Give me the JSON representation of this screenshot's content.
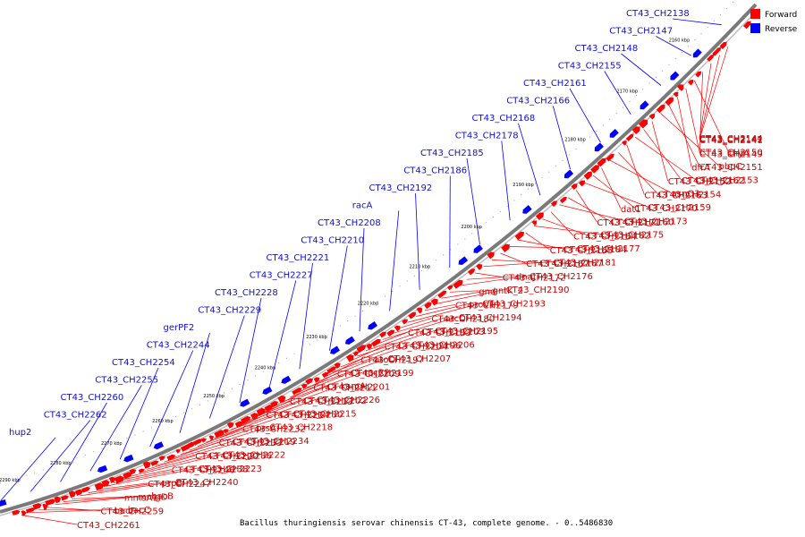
{
  "colors": {
    "forward": "#ff0000",
    "reverse": "#0000ff",
    "forward_label": "#cc0000",
    "reverse_label": "#1010cc",
    "backbone": "#808080"
  },
  "legend": {
    "forward": "Forward",
    "reverse": "Reverse"
  },
  "caption": "Bacillus thuringiensis serovar chinensis CT-43, complete genome. - 0..5486830",
  "ticks": [
    "2160 kbp",
    "2170 kbp",
    "2180 kbp",
    "2190 kbp",
    "2200 kbp",
    "2210 kbp",
    "2220 kbp",
    "2230 kbp",
    "2240 kbp",
    "2250 kbp",
    "2260 kbp",
    "2270 kbp",
    "2280 kbp",
    "2290 kbp"
  ],
  "reverse_labels": [
    "CT43_CH2138",
    "CT43_CH2147",
    "CT43_CH2148",
    "CT43_CH2155",
    "CT43_CH2161",
    "CT43_CH2166",
    "CT43_CH2168",
    "CT43_CH2178",
    "CT43_CH2185",
    "CT43_CH2186",
    "CT43_CH2192",
    "racA",
    "CT43_CH2208",
    "CT43_CH2210",
    "CT43_CH2221",
    "CT43_CH2227",
    "CT43_CH2228",
    "CT43_CH2229",
    "gerPF2",
    "CT43_CH2244",
    "CT43_CH2254",
    "CT43_CH2255",
    "CT43_CH2260",
    "CT43_CH2262",
    "hup2"
  ],
  "forward_labels": [
    "CT43_CH2141",
    "CT43_CH2142",
    "CT43_CH2144",
    "CT43_CH2149",
    "thyA",
    "CT43_CH2150",
    "dfrA",
    "CT43_CH2151",
    "pbpC",
    "CT43_CH2152",
    "CT43_CH2162",
    "CT43_CH2153",
    "CT43_CH2163",
    "CT43_CH2154",
    "asnO3",
    "dat1",
    "CT43_CH2170",
    "CT43_CH2159",
    "CT43_CH2171",
    "CT43_CH2160",
    "CT43_CH2173",
    "CT43_CH2164",
    "CT43_CH2182",
    "CT43_CH2175",
    "CT43_CH2165",
    "CT43_CH2184",
    "CT43_CH2177",
    "CT43_CH2167",
    "CT43_CH2187",
    "CT43_CH2181",
    "CT43_CH2172",
    "dnaJ",
    "CT43_CH2176",
    "gnd",
    "gntK_2",
    "CT43_CH2190",
    "CT43_CH2179",
    "proV1",
    "CT43_CH2193",
    "CT43_CH2180",
    "arcD",
    "CT43_CH2194",
    "CT43_CH2183",
    "CT43_CH2203",
    "CT43_CH2195",
    "CT43_CH2204",
    "CT43_CH2196",
    "CT43_CH2206",
    "CT43_CH2197",
    "atoD",
    "CT43_CH2207",
    "CT43_CH2209",
    "CT43_CH2199",
    "rocR2",
    "CT43_CH2211",
    "CT43_CH2201",
    "kamA",
    "CT43_CH2213",
    "CT43_CH2202",
    "CT43_CH2226",
    "CT43_CH2214",
    "CT43_CH2230",
    "CT43_CH2215",
    "CT43_CH2232",
    "prsA",
    "CT43_CH2218",
    "CT43_CH2233",
    "CT43_CH2219",
    "CT43_CH2234",
    "CT43_CH2220",
    "CT43_CH2236",
    "CT43_CH2222",
    "CT43_CH2246",
    "CT43_CH2238",
    "CT43_CH2223",
    "CT43_CH2247",
    "prpB",
    "CT43_CH2240",
    "mmsA1",
    "mmgD",
    "bacB",
    "CT43_CH2259",
    "bacF",
    "bacC",
    "CT43_CH2261"
  ]
}
